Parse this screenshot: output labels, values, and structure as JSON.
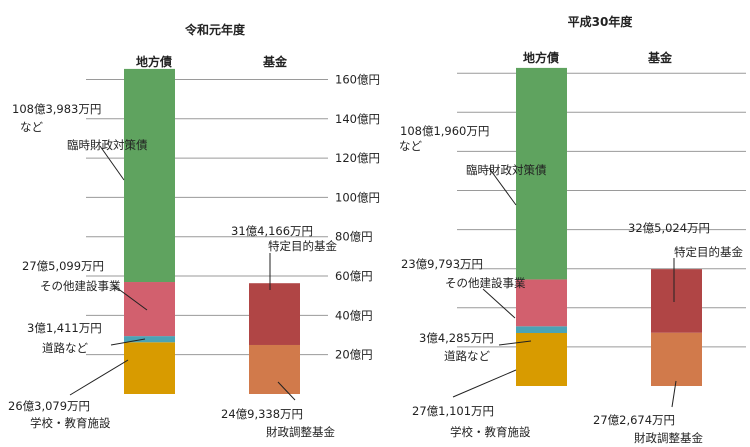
{
  "chart_data": [
    {
      "type": "bar",
      "title": "令和元年度",
      "categories": [
        "地方債",
        "基金"
      ],
      "series": [
        {
          "name": "学校・教育施設",
          "category": "地方債",
          "value": 26.3079,
          "label": [
            "学校・教育施設",
            "26億3,079万円"
          ],
          "color": "#D89B00"
        },
        {
          "name": "道路など",
          "category": "地方債",
          "value": 3.1411,
          "label": [
            "道路など",
            "3億1,411万円"
          ],
          "color": "#4BA3B5"
        },
        {
          "name": "その他建設事業",
          "category": "地方債",
          "value": 27.5099,
          "label": [
            "その他建設事業",
            "27億5,099万円"
          ],
          "color": "#D2606E"
        },
        {
          "name": "臨時財政対策債など",
          "category": "地方債",
          "value": 108.3983,
          "label": [
            "臨時財政対策債",
            "など",
            "108億3,983万円"
          ],
          "color": "#5FA35F"
        },
        {
          "name": "財政調整基金",
          "category": "基金",
          "value": 24.9338,
          "label": [
            "財政調整基金",
            "24億9,338万円"
          ],
          "color": "#D17A4B"
        },
        {
          "name": "特定目的基金",
          "category": "基金",
          "value": 31.4166,
          "label": [
            "特定目的基金",
            "31億4,166万円"
          ],
          "color": "#B04545"
        }
      ],
      "ylim": [
        0,
        160
      ],
      "yticks": [
        20,
        40,
        60,
        80,
        100,
        120,
        140,
        160
      ],
      "ytick_labels": [
        "20億円",
        "40億円",
        "60億円",
        "80億円",
        "100億円",
        "120億円",
        "140億円",
        "160億円"
      ]
    },
    {
      "type": "bar",
      "title": "平成30年度",
      "categories": [
        "地方債",
        "基金"
      ],
      "series": [
        {
          "name": "学校・教育施設",
          "category": "地方債",
          "value": 27.1101,
          "label": [
            "学校・教育施設",
            "27億1,101万円"
          ],
          "color": "#D89B00"
        },
        {
          "name": "道路など",
          "category": "地方債",
          "value": 3.4285,
          "label": [
            "道路など",
            "3億4,285万円"
          ],
          "color": "#4BA3B5"
        },
        {
          "name": "その他建設事業",
          "category": "地方債",
          "value": 23.9793,
          "label": [
            "その他建設事業",
            "23億9,793万円"
          ],
          "color": "#D2606E"
        },
        {
          "name": "臨時財政対策債など",
          "category": "地方債",
          "value": 108.196,
          "label": [
            "臨時財政対策債",
            "など",
            "108億1,960万円"
          ],
          "color": "#5FA35F"
        },
        {
          "name": "財政調整基金",
          "category": "基金",
          "value": 27.2674,
          "label": [
            "財政調整基金",
            "27億2,674万円"
          ],
          "color": "#D17A4B"
        },
        {
          "name": "特定目的基金",
          "category": "基金",
          "value": 32.5024,
          "label": [
            "特定目的基金",
            "32億5,024万円"
          ],
          "color": "#B04545"
        }
      ],
      "ylim": [
        0,
        160
      ],
      "yticks": [
        20,
        40,
        60,
        80,
        100,
        120,
        140,
        160
      ],
      "ytick_labels": []
    }
  ]
}
